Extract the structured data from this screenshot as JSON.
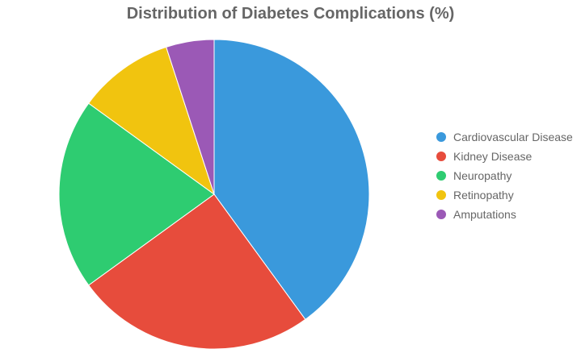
{
  "chart_data": {
    "type": "pie",
    "title": "Distribution of Diabetes Complications (%)",
    "categories": [
      "Cardiovascular Disease",
      "Kidney Disease",
      "Neuropathy",
      "Retinopathy",
      "Amputations"
    ],
    "values": [
      40,
      25,
      20,
      10,
      5
    ],
    "colors": [
      "#3a99dc",
      "#e74c3c",
      "#2ecc71",
      "#f1c40f",
      "#9b59b6"
    ],
    "legend_position": "right"
  }
}
